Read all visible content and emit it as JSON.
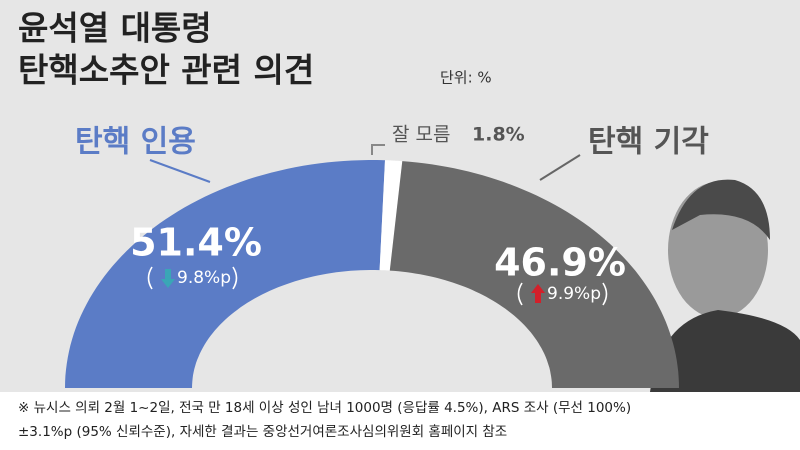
{
  "chart_data": {
    "type": "half-donut",
    "title_lines": [
      "윤석열 대통령",
      "탄핵소추안 관련 의견"
    ],
    "unit": "단위: %",
    "categories": [
      "탄핵 인용",
      "잘 모름",
      "탄핵 기각"
    ],
    "values": [
      51.4,
      1.8,
      46.9
    ],
    "value_labels": [
      "51.4%",
      "1.8%",
      "46.9%"
    ],
    "colors": [
      "#5b7cc6",
      "#ffffff",
      "#6a6a6a"
    ],
    "changes": [
      {
        "value": -9.8,
        "label": "9.8%p"
      },
      null,
      {
        "value": 9.9,
        "label": "9.9%p"
      }
    ],
    "footnote": [
      "※ 뉴시스 의뢰 2월 1~2일, 전국 만 18세 이상 성인 남녀 1000명 (응답률 4.5%), ARS 조사 (무선 100%)",
      "±3.1%p (95% 신뢰수준), 자세한 결과는 중앙선거여론조사심의위원회 홈페이지 참조"
    ]
  }
}
